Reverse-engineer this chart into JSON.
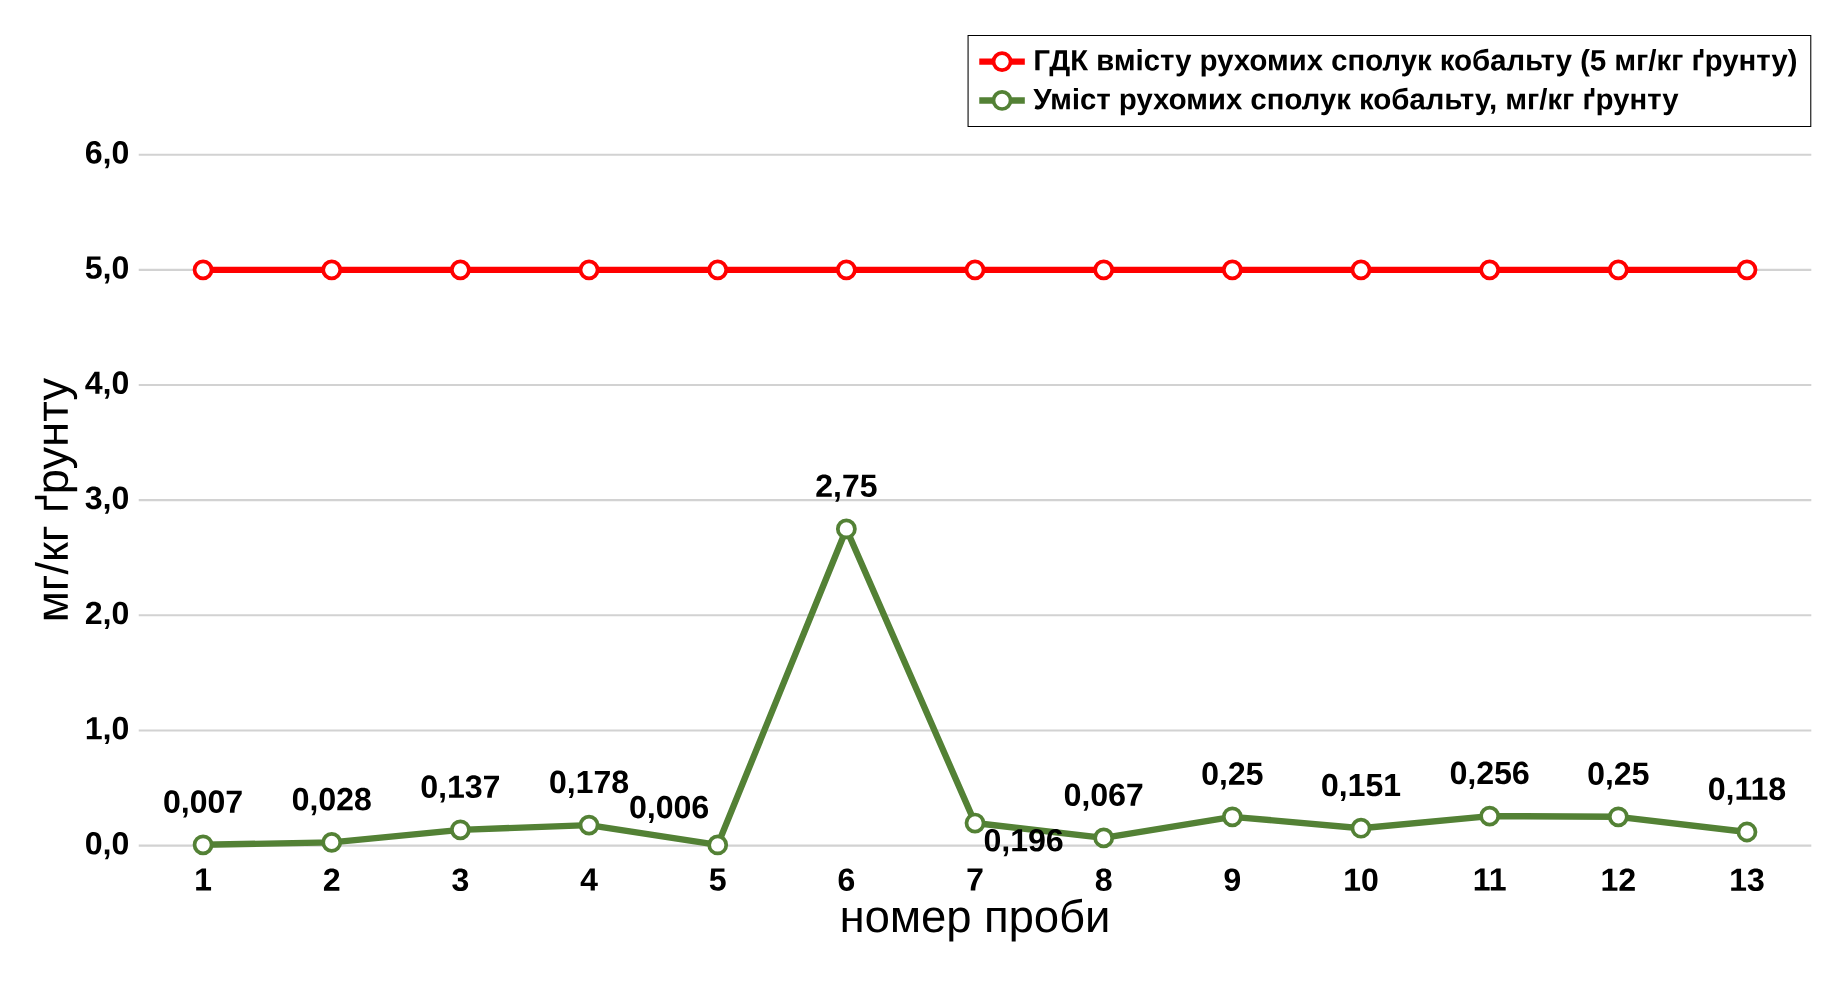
{
  "chart_data": {
    "type": "line",
    "xlabel": "номер проби",
    "ylabel": "мг/кг ґрунту",
    "categories": [
      "1",
      "2",
      "3",
      "4",
      "5",
      "6",
      "7",
      "8",
      "9",
      "10",
      "11",
      "12",
      "13"
    ],
    "series": [
      {
        "name": "ГДК вмісту рухомих сполук кобальту (5 мг/кг ґрунту)",
        "color": "#ff0000",
        "values": [
          5,
          5,
          5,
          5,
          5,
          5,
          5,
          5,
          5,
          5,
          5,
          5,
          5
        ]
      },
      {
        "name": "Уміст рухомих сполук кобальту, мг/кг ґрунту",
        "color": "#538135",
        "values": [
          0.007,
          0.028,
          0.137,
          0.178,
          0.006,
          2.75,
          0.196,
          0.067,
          0.25,
          0.151,
          0.256,
          0.25,
          0.118
        ],
        "value_labels": [
          "0,007",
          "0,028",
          "0,137",
          "0,178",
          "0,006",
          "2,75",
          "0,196",
          "0,067",
          "0,25",
          "0,151",
          "0,256",
          "0,25",
          "0,118"
        ]
      }
    ],
    "ylim": [
      0,
      6
    ],
    "yticks": [
      {
        "value": 0,
        "label": "0,0"
      },
      {
        "value": 1,
        "label": "1,0"
      },
      {
        "value": 2,
        "label": "2,0"
      },
      {
        "value": 3,
        "label": "3,0"
      },
      {
        "value": 4,
        "label": "4,0"
      },
      {
        "value": 5,
        "label": "5,0"
      },
      {
        "value": 6,
        "label": "6,0"
      }
    ],
    "grid": "y",
    "legend": "top right",
    "marker": "circle",
    "line_style": "solid"
  }
}
